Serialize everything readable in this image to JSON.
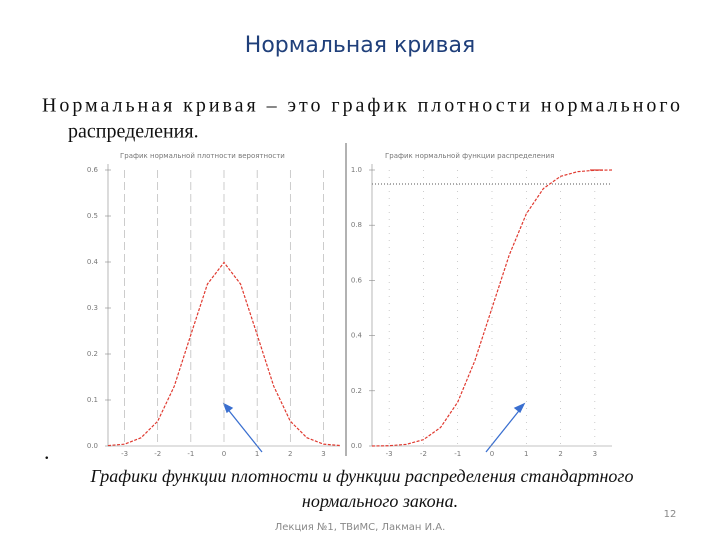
{
  "title": "Нормальная кривая",
  "body": {
    "line1": "Нормальная кривая – это график плотности нормального",
    "line2": "распределения."
  },
  "bullet": ".",
  "caption": {
    "line1": "Графики функции плотности и функции распределения стандартного",
    "line2": "нормального закона."
  },
  "footer": "Лекция №1, ТВиМС, Лакман И.А.",
  "page_number": "12",
  "chart_data": [
    {
      "type": "line",
      "title": "График нормальной плотности вероятности",
      "x": [
        -3.5,
        -3,
        -2.5,
        -2,
        -1.5,
        -1,
        -0.5,
        0,
        0.5,
        1,
        1.5,
        2,
        2.5,
        3,
        3.5
      ],
      "series": [
        {
          "color": "#e03a30",
          "values": [
            0.001,
            0.004,
            0.018,
            0.054,
            0.13,
            0.242,
            0.352,
            0.399,
            0.352,
            0.242,
            0.13,
            0.054,
            0.018,
            0.004,
            0.001
          ]
        }
      ],
      "xlim": [
        -3.5,
        3.5
      ],
      "xticks": [
        -3,
        -2,
        -1,
        0,
        1,
        2,
        3
      ],
      "ylim": [
        0,
        0.6
      ],
      "yticks": [
        {
          "value": 0,
          "label": "0.0"
        },
        0.1,
        0.2,
        0.3,
        0.4,
        0.5,
        0.6
      ],
      "grid": true
    },
    {
      "type": "line",
      "title": "График нормальной функции распределения",
      "x": [
        -3.5,
        -3,
        -2.5,
        -2,
        -1.5,
        -1,
        -0.5,
        0,
        0.5,
        1,
        1.5,
        2,
        2.5,
        3,
        3.5
      ],
      "series": [
        {
          "color": "#e03a30",
          "values": [
            0,
            0.001,
            0.006,
            0.023,
            0.067,
            0.159,
            0.309,
            0.5,
            0.691,
            0.841,
            0.933,
            0.977,
            0.994,
            0.999,
            1
          ]
        }
      ],
      "xlim": [
        -3.5,
        3.5
      ],
      "xticks": [
        -3,
        -2,
        -1,
        0,
        1,
        2,
        3
      ],
      "ylim": [
        0,
        1
      ],
      "yticks": [
        {
          "value": 0,
          "label": "0.0"
        },
        0.2,
        0.4,
        0.6,
        0.8,
        {
          "value": 1,
          "label": "1.0"
        }
      ],
      "grid": true
    }
  ]
}
